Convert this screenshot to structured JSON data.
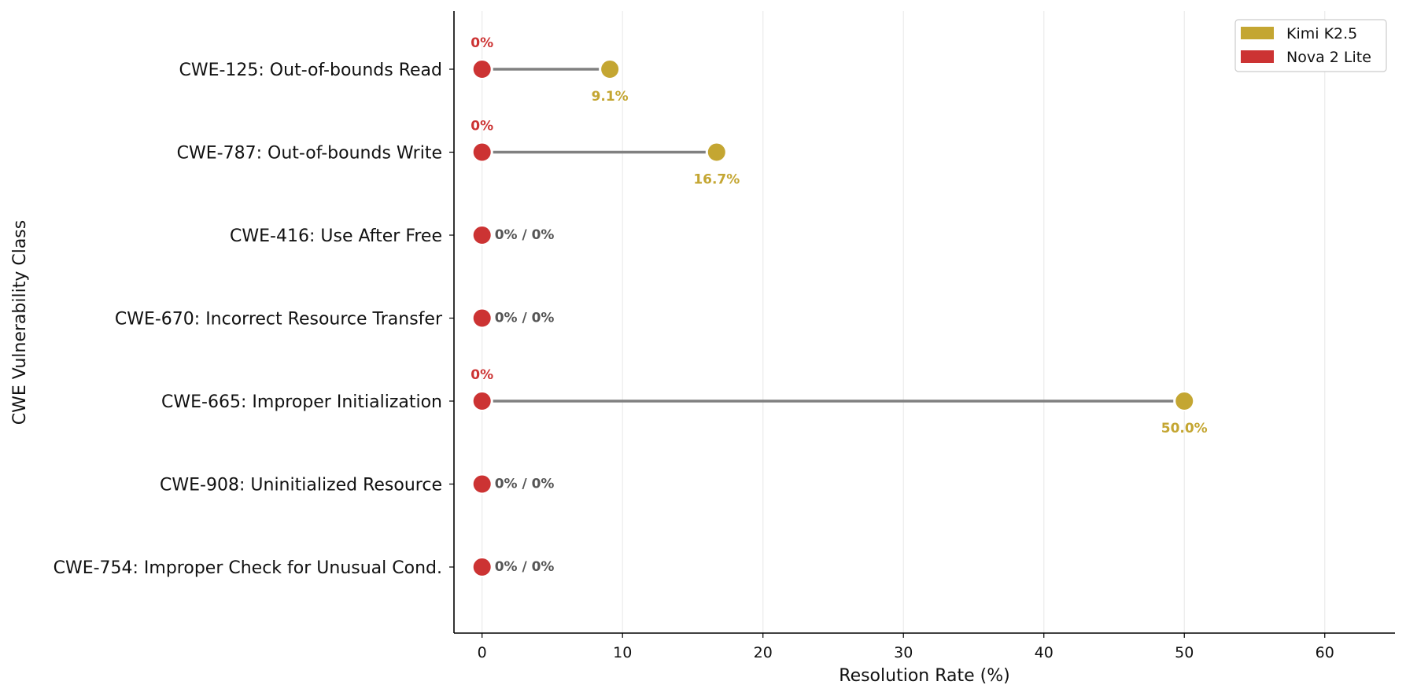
{
  "chart_data": {
    "type": "dumbbell",
    "xlabel": "Resolution Rate (%)",
    "ylabel": "CWE Vulnerability Class",
    "xlim": [
      -2,
      65
    ],
    "xticks": [
      0,
      10,
      20,
      30,
      40,
      50,
      60
    ],
    "grid": "x",
    "legend_position": "top-right",
    "colors": {
      "Kimi K2.5": "#c4a632",
      "Nova 2 Lite": "#cc3333",
      "connector": "#808080",
      "both_label": "#555555"
    },
    "categories": [
      "CWE-125: Out-of-bounds Read",
      "CWE-787: Out-of-bounds Write",
      "CWE-416: Use After Free",
      "CWE-670: Incorrect Resource Transfer",
      "CWE-665: Improper Initialization",
      "CWE-908: Uninitialized Resource",
      "CWE-754: Improper Check for Unusual Cond."
    ],
    "series": [
      {
        "name": "Kimi K2.5",
        "values": [
          9.1,
          16.7,
          0,
          0,
          50.0,
          0,
          0
        ],
        "labels": [
          "9.1%",
          "16.7%",
          "",
          "",
          "50.0%",
          "",
          ""
        ]
      },
      {
        "name": "Nova 2 Lite",
        "values": [
          0,
          0,
          0,
          0,
          0,
          0,
          0
        ],
        "labels": [
          "0%",
          "0%",
          "",
          "",
          "0%",
          "",
          ""
        ]
      }
    ],
    "combined_labels": [
      "",
      "",
      "0% / 0%",
      "0% / 0%",
      "",
      "0% / 0%",
      "0% / 0%"
    ]
  }
}
